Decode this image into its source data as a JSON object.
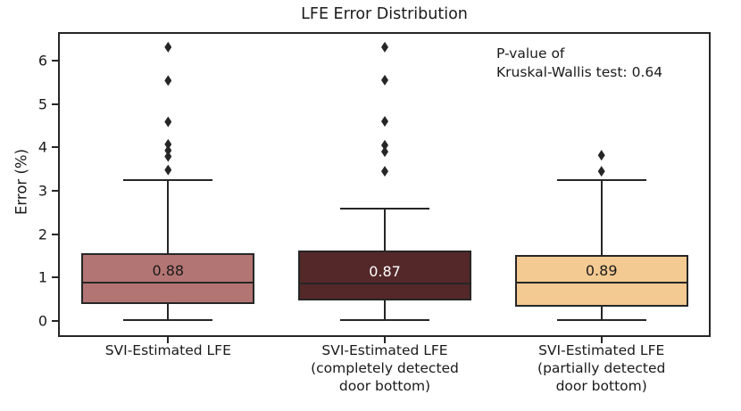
{
  "figure": {
    "title": "LFE Error Distribution",
    "ylabel": "Error (%)",
    "annotation_line1": "P-value of",
    "annotation_line2": "Kruskal-Wallis test: 0.64"
  },
  "chart_data": {
    "type": "boxplot",
    "title": "LFE Error Distribution",
    "xlabel": "",
    "ylabel": "Error (%)",
    "ylim": [
      -0.35,
      6.62
    ],
    "yticks": [
      0,
      1,
      2,
      3,
      4,
      5,
      6
    ],
    "grid": false,
    "legend": "none",
    "annotation": "P-value of\nKruskal-Wallis test: 0.64",
    "line_color": "#262626",
    "categories": [
      "SVI-Estimated LFE",
      "SVI-Estimated LFE (completely detected door bottom)",
      "SVI-Estimated LFE (partially detected door bottom)"
    ],
    "groups": [
      {
        "category_lines": [
          "SVI-Estimated LFE"
        ],
        "median": 0.88,
        "median_label": "0.88",
        "median_label_color": "#1a1a1a",
        "q1": 0.38,
        "q3": 1.56,
        "whisker_low": 0.02,
        "whisker_high": 3.25,
        "outliers": [
          3.48,
          3.79,
          3.93,
          4.07,
          4.59,
          5.54,
          6.31
        ],
        "fill_color": "#b37573"
      },
      {
        "category_lines": [
          "SVI-Estimated LFE",
          "(completely detected",
          "door bottom)"
        ],
        "median": 0.87,
        "median_label": "0.87",
        "median_label_color": "#ffffff",
        "q1": 0.47,
        "q3": 1.62,
        "whisker_low": 0.02,
        "whisker_high": 2.58,
        "outliers": [
          3.45,
          3.9,
          4.05,
          4.6,
          5.55,
          6.31
        ],
        "fill_color": "#542829"
      },
      {
        "category_lines": [
          "SVI-Estimated LFE",
          "(partially detected",
          "door bottom)"
        ],
        "median": 0.89,
        "median_label": "0.89",
        "median_label_color": "#1a1a1a",
        "q1": 0.33,
        "q3": 1.52,
        "whisker_low": 0.02,
        "whisker_high": 3.25,
        "outliers": [
          3.45,
          3.82
        ],
        "fill_color": "#f3ca92"
      }
    ]
  }
}
